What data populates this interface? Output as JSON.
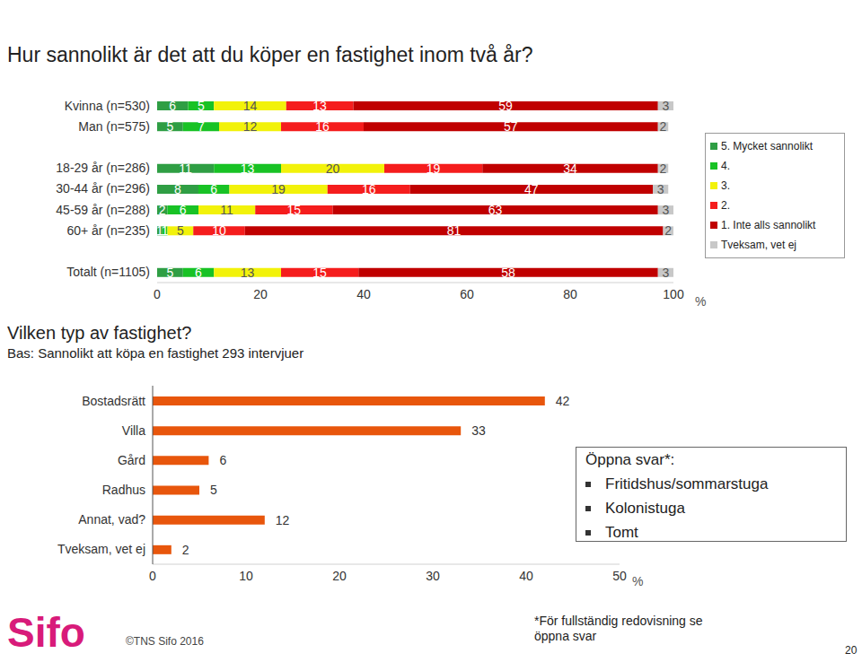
{
  "chart_data": [
    {
      "type": "bar",
      "title": "Hur sannolikt är det att du köper en fastighet inom två år?",
      "orientation": "horizontal",
      "stacked": true,
      "data_labels": true,
      "legend": "right",
      "grid": false,
      "xlabel": "%",
      "categories": [
        "Kvinna (n=530)",
        "Man (n=575)",
        null,
        "18-29 år (n=286)",
        "30-44 år (n=296)",
        "45-59 år (n=288)",
        "60+ år (n=235)",
        null,
        "Totalt (n=1105)"
      ],
      "xlim": [
        0,
        100
      ],
      "xticks": [
        0,
        20,
        40,
        60,
        80,
        100
      ],
      "series": [
        {
          "name": "5. Mycket sannolikt",
          "color": "#2f9e44",
          "values": [
            6,
            5,
            null,
            11,
            8,
            2,
            1,
            null,
            5
          ]
        },
        {
          "name": "4.",
          "color": "#18c225",
          "values": [
            5,
            7,
            null,
            13,
            6,
            6,
            1,
            null,
            6
          ]
        },
        {
          "name": "3.",
          "color": "#f2f20a",
          "values": [
            14,
            12,
            null,
            20,
            19,
            11,
            5,
            null,
            13
          ]
        },
        {
          "name": "2.",
          "color": "#f51d1d",
          "values": [
            13,
            16,
            null,
            19,
            16,
            15,
            10,
            null,
            15
          ]
        },
        {
          "name": "1. Inte alls sannolikt",
          "color": "#c00000",
          "values": [
            59,
            57,
            null,
            34,
            47,
            63,
            81,
            null,
            58
          ]
        },
        {
          "name": "Tveksam, vet ej",
          "color": "#c8c8c8",
          "values": [
            3,
            2,
            null,
            2,
            3,
            3,
            2,
            null,
            3
          ]
        }
      ]
    },
    {
      "type": "bar",
      "title": "Vilken typ av fastighet?",
      "subtitle": "Bas: Sannolikt att köpa en fastighet 293 intervjuer",
      "orientation": "horizontal",
      "data_labels": true,
      "grid": false,
      "xlabel": "%",
      "color": "#e8560c",
      "categories": [
        "Bostadsrätt",
        "Villa",
        "Gård",
        "Radhus",
        "Annat, vad?",
        "Tveksam, vet ej"
      ],
      "values": [
        42,
        33,
        6,
        5,
        12,
        2
      ],
      "xlim": [
        0,
        50
      ],
      "xticks": [
        0,
        10,
        20,
        30,
        40,
        50
      ],
      "annotations": [
        "Öppna svar*:",
        "Fritidshus/sommarstuga",
        "Kolonistuga",
        "Tomt"
      ]
    }
  ],
  "footer": {
    "logo": "Sifo",
    "copyright": "©TNS Sifo 2016",
    "note": "*För fullständig redovisning se öppna svar",
    "page": "20"
  }
}
